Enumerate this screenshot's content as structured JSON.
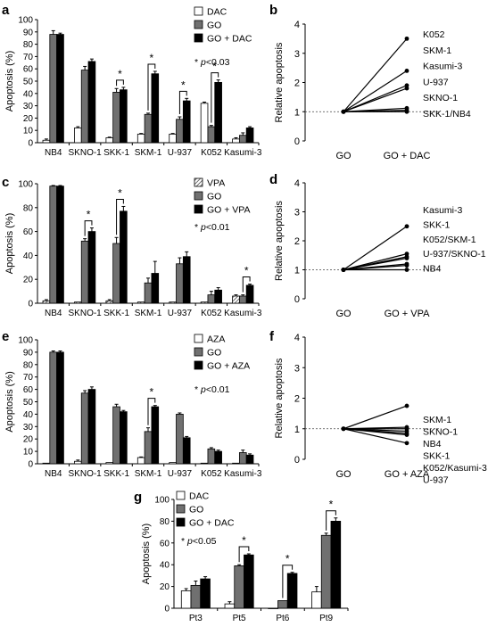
{
  "colors": {
    "dac": "#ffffff",
    "go": "#707070",
    "combo": "#000000",
    "vpa_pattern": "hatched-gray",
    "line": "#000000"
  },
  "chart_data": [
    {
      "id": "a",
      "panel_label": "a",
      "type": "bar",
      "ylabel": "Apoptosis (%)",
      "ylim": [
        0,
        100
      ],
      "yticks": [
        0,
        10,
        20,
        30,
        40,
        50,
        60,
        70,
        80,
        90,
        100
      ],
      "categories": [
        "NB4",
        "SKNO-1",
        "SKK-1",
        "SKM-1",
        "U-937",
        "K052",
        "Kasumi-3"
      ],
      "series": [
        {
          "name": "DAC",
          "fill": "white",
          "values": [
            2,
            12,
            4,
            7,
            7,
            32,
            3
          ],
          "errors": [
            1,
            1,
            0.5,
            0.5,
            0.5,
            1,
            1
          ]
        },
        {
          "name": "GO",
          "fill": "gray",
          "values": [
            88,
            59,
            41,
            23,
            19,
            13,
            6
          ],
          "errors": [
            3,
            3,
            3,
            1,
            2,
            1,
            2
          ]
        },
        {
          "name": "GO + DAC",
          "fill": "black",
          "values": [
            88,
            66,
            43,
            56,
            34,
            49,
            12
          ],
          "errors": [
            1,
            2,
            2,
            2,
            2,
            2,
            1
          ]
        }
      ],
      "significance": [
        2,
        3,
        4,
        5
      ],
      "pnote": "p<0.03"
    },
    {
      "id": "b",
      "panel_label": "b",
      "type": "line",
      "ylabel": "Relative apoptosis",
      "ylim": [
        0,
        4
      ],
      "yticks": [
        0,
        1,
        2,
        3,
        4
      ],
      "x": [
        "GO",
        "GO + DAC"
      ],
      "series": [
        {
          "name": "K052",
          "values": [
            1,
            3.5
          ]
        },
        {
          "name": "SKM-1",
          "values": [
            1,
            2.4
          ]
        },
        {
          "name": "Kasumi-3",
          "values": [
            1,
            1.9
          ]
        },
        {
          "name": "U-937",
          "values": [
            1,
            1.8
          ]
        },
        {
          "name": "SKNO-1",
          "values": [
            1,
            1.12
          ]
        },
        {
          "name": "SKK-1",
          "values": [
            1,
            1.05
          ]
        },
        {
          "name": "NB4",
          "values": [
            1,
            1.0
          ]
        }
      ],
      "labels": [
        "K052",
        "SKM-1",
        "Kasumi-3",
        "U-937",
        "SKNO-1",
        "SKK-1/NB4"
      ]
    },
    {
      "id": "c",
      "panel_label": "c",
      "type": "bar",
      "ylabel": "Apoptosis (%)",
      "ylim": [
        0,
        100
      ],
      "yticks": [
        0,
        20,
        40,
        60,
        80,
        100
      ],
      "categories": [
        "NB4",
        "SKNO-1",
        "SKK-1",
        "SKM-1",
        "U-937",
        "K052",
        "Kasumi-3"
      ],
      "series": [
        {
          "name": "VPA",
          "fill": "hatch",
          "values": [
            2,
            1,
            2,
            1,
            1,
            1,
            6
          ],
          "errors": [
            1,
            0,
            1,
            0,
            0,
            0,
            1
          ]
        },
        {
          "name": "GO",
          "fill": "gray",
          "values": [
            98,
            52,
            50,
            17,
            33,
            7,
            6
          ],
          "errors": [
            0.5,
            2,
            5,
            4,
            5,
            3,
            1
          ]
        },
        {
          "name": "GO + VPA",
          "fill": "black",
          "values": [
            98,
            60,
            77,
            25,
            39,
            11,
            15
          ],
          "errors": [
            0.5,
            3,
            4,
            10,
            4,
            2,
            1
          ]
        }
      ],
      "significance": [
        1,
        2,
        6
      ],
      "pnote": "p<0.01"
    },
    {
      "id": "d",
      "panel_label": "d",
      "type": "line",
      "ylabel": "Relative apoptosis",
      "ylim": [
        0,
        4
      ],
      "yticks": [
        0,
        1,
        2,
        3,
        4
      ],
      "x": [
        "GO",
        "GO + VPA"
      ],
      "series": [
        {
          "name": "Kasumi-3",
          "values": [
            1,
            2.5
          ]
        },
        {
          "name": "SKK-1",
          "values": [
            1,
            1.55
          ]
        },
        {
          "name": "K052",
          "values": [
            1,
            1.45
          ]
        },
        {
          "name": "SKM-1",
          "values": [
            1,
            1.4
          ]
        },
        {
          "name": "U-937",
          "values": [
            1,
            1.2
          ]
        },
        {
          "name": "SKNO-1",
          "values": [
            1,
            1.15
          ]
        },
        {
          "name": "NB4",
          "values": [
            1,
            1.0
          ]
        }
      ],
      "labels": [
        "Kasumi-3",
        "SKK-1",
        "K052/SKM-1",
        "U-937/SKNO-1",
        "NB4"
      ]
    },
    {
      "id": "e",
      "panel_label": "e",
      "type": "bar",
      "ylabel": "Apoptosis (%)",
      "ylim": [
        0,
        100
      ],
      "yticks": [
        0,
        10,
        20,
        30,
        40,
        50,
        60,
        70,
        80,
        90,
        100
      ],
      "categories": [
        "NB4",
        "SKNO-1",
        "SKK-1",
        "SKM-1",
        "U-937",
        "K052",
        "Kasumi-3"
      ],
      "series": [
        {
          "name": "AZA",
          "fill": "white",
          "values": [
            0.5,
            2,
            1,
            5,
            1,
            0.5,
            0.5
          ],
          "errors": [
            0,
            1,
            0,
            0.5,
            0,
            0,
            0
          ]
        },
        {
          "name": "GO",
          "fill": "gray",
          "values": [
            90,
            57,
            46,
            26,
            40,
            12,
            9
          ],
          "errors": [
            1,
            2,
            2,
            3,
            1,
            1,
            2
          ]
        },
        {
          "name": "GO + AZA",
          "fill": "black",
          "values": [
            90,
            60,
            42,
            46,
            21,
            10,
            7
          ],
          "errors": [
            1,
            2,
            1,
            1,
            1,
            1,
            1
          ]
        }
      ],
      "significance": [
        3
      ],
      "pnote": "p<0.01"
    },
    {
      "id": "f",
      "panel_label": "f",
      "type": "line",
      "ylabel": "Relative apoptosis",
      "ylim": [
        0,
        4
      ],
      "yticks": [
        0,
        1,
        2,
        3,
        4
      ],
      "x": [
        "GO",
        "GO + AZA"
      ],
      "series": [
        {
          "name": "SKM-1",
          "values": [
            1,
            1.75
          ]
        },
        {
          "name": "SKNO-1",
          "values": [
            1,
            1.05
          ]
        },
        {
          "name": "NB4",
          "values": [
            1,
            1.0
          ]
        },
        {
          "name": "SKK-1",
          "values": [
            1,
            0.92
          ]
        },
        {
          "name": "K052",
          "values": [
            1,
            0.85
          ]
        },
        {
          "name": "Kasumi-3",
          "values": [
            1,
            0.8
          ]
        },
        {
          "name": "U-937",
          "values": [
            1,
            0.53
          ]
        }
      ],
      "labels": [
        "SKM-1",
        "SKNO-1",
        "NB4",
        "SKK-1",
        "K052/Kasumi-3",
        "U-937"
      ]
    },
    {
      "id": "g",
      "panel_label": "g",
      "type": "bar",
      "ylabel": "Apoptosis (%)",
      "ylim": [
        0,
        100
      ],
      "yticks": [
        0,
        20,
        40,
        60,
        80,
        100
      ],
      "categories": [
        "Pt3",
        "Pt5",
        "Pt6",
        "Pt9"
      ],
      "series": [
        {
          "name": "DAC",
          "fill": "white",
          "values": [
            16,
            4,
            0,
            15
          ],
          "errors": [
            2,
            2,
            0,
            5
          ]
        },
        {
          "name": "GO",
          "fill": "gray",
          "values": [
            21,
            39,
            7,
            67
          ],
          "errors": [
            4,
            1,
            0,
            2
          ]
        },
        {
          "name": "GO + DAC",
          "fill": "black",
          "values": [
            27,
            49,
            32,
            80
          ],
          "errors": [
            2,
            1,
            1,
            3
          ]
        }
      ],
      "significance": [
        1,
        2,
        3
      ],
      "pnote": "p<0.05"
    }
  ]
}
